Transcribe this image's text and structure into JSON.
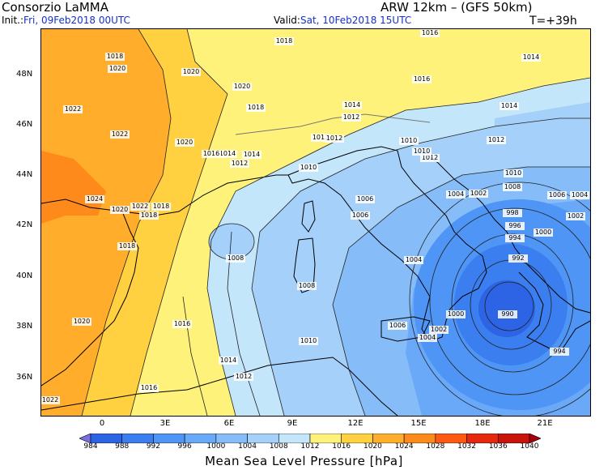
{
  "header": {
    "source": "Consorzio LaMMA",
    "model": "ARW 12km – (GFS 50km)",
    "init_label": "Init.:",
    "init_value": "Fri, 09Feb2018 00UTC",
    "valid_label": "Valid:",
    "valid_value": "Sat, 10Feb2018 15UTC",
    "step": "T=+39h"
  },
  "axes": {
    "lat_labels": [
      "48N",
      "46N",
      "44N",
      "42N",
      "40N",
      "38N",
      "36N"
    ],
    "lon_labels": [
      "0",
      "3E",
      "6E",
      "9E",
      "12E",
      "15E",
      "18E",
      "21E"
    ]
  },
  "colorbar": {
    "values": [
      "984",
      "988",
      "992",
      "996",
      "1000",
      "1004",
      "1008",
      "1012",
      "1016",
      "1020",
      "1024",
      "1028",
      "1032",
      "1036",
      "1040"
    ],
    "colors": [
      "#7a6ee0",
      "#2d64e6",
      "#3a7ef0",
      "#4f95f5",
      "#6aa8f8",
      "#86bdf8",
      "#a4d0fa",
      "#c4e6fb",
      "#fff27a",
      "#ffd040",
      "#ffad2a",
      "#ff8a1c",
      "#ff5a14",
      "#e8280e",
      "#c8140a",
      "#a8000a"
    ],
    "title": "Mean Sea Level Pressure [hPa]"
  },
  "map": {
    "lows": [
      {
        "label": "990"
      }
    ],
    "isobar_labels": [
      {
        "text": "1018"
      },
      {
        "text": "1016"
      },
      {
        "text": "1016"
      },
      {
        "text": "1014"
      },
      {
        "text": "1014"
      },
      {
        "text": "1018"
      },
      {
        "text": "1020"
      },
      {
        "text": "1020"
      },
      {
        "text": "1020"
      },
      {
        "text": "1018"
      },
      {
        "text": "1014"
      },
      {
        "text": "1014"
      },
      {
        "text": "1012"
      },
      {
        "text": "1022"
      },
      {
        "text": "1022"
      },
      {
        "text": "1020"
      },
      {
        "text": "1016"
      },
      {
        "text": "1014"
      },
      {
        "text": "1012"
      },
      {
        "text": "1012"
      },
      {
        "text": "1012"
      },
      {
        "text": "1010"
      },
      {
        "text": "1012"
      },
      {
        "text": "1010"
      },
      {
        "text": "1010"
      },
      {
        "text": "1012"
      },
      {
        "text": "1010"
      },
      {
        "text": "1006"
      },
      {
        "text": "1004"
      },
      {
        "text": "1002"
      },
      {
        "text": "1008"
      },
      {
        "text": "1006"
      },
      {
        "text": "1004"
      },
      {
        "text": "1024"
      },
      {
        "text": "1022"
      },
      {
        "text": "1020"
      },
      {
        "text": "1018"
      },
      {
        "text": "1018"
      },
      {
        "text": "1008"
      },
      {
        "text": "1006"
      },
      {
        "text": "998"
      },
      {
        "text": "996"
      },
      {
        "text": "1002"
      },
      {
        "text": "1000"
      },
      {
        "text": "994"
      },
      {
        "text": "992"
      },
      {
        "text": "1018"
      },
      {
        "text": "1008"
      },
      {
        "text": "1004"
      },
      {
        "text": "1000"
      },
      {
        "text": "1020"
      },
      {
        "text": "1016"
      },
      {
        "text": "1006"
      },
      {
        "text": "1002"
      },
      {
        "text": "1004"
      },
      {
        "text": "1010"
      },
      {
        "text": "1014"
      },
      {
        "text": "1012"
      },
      {
        "text": "1016"
      },
      {
        "text": "1022"
      },
      {
        "text": "994"
      },
      {
        "text": "990"
      }
    ]
  }
}
